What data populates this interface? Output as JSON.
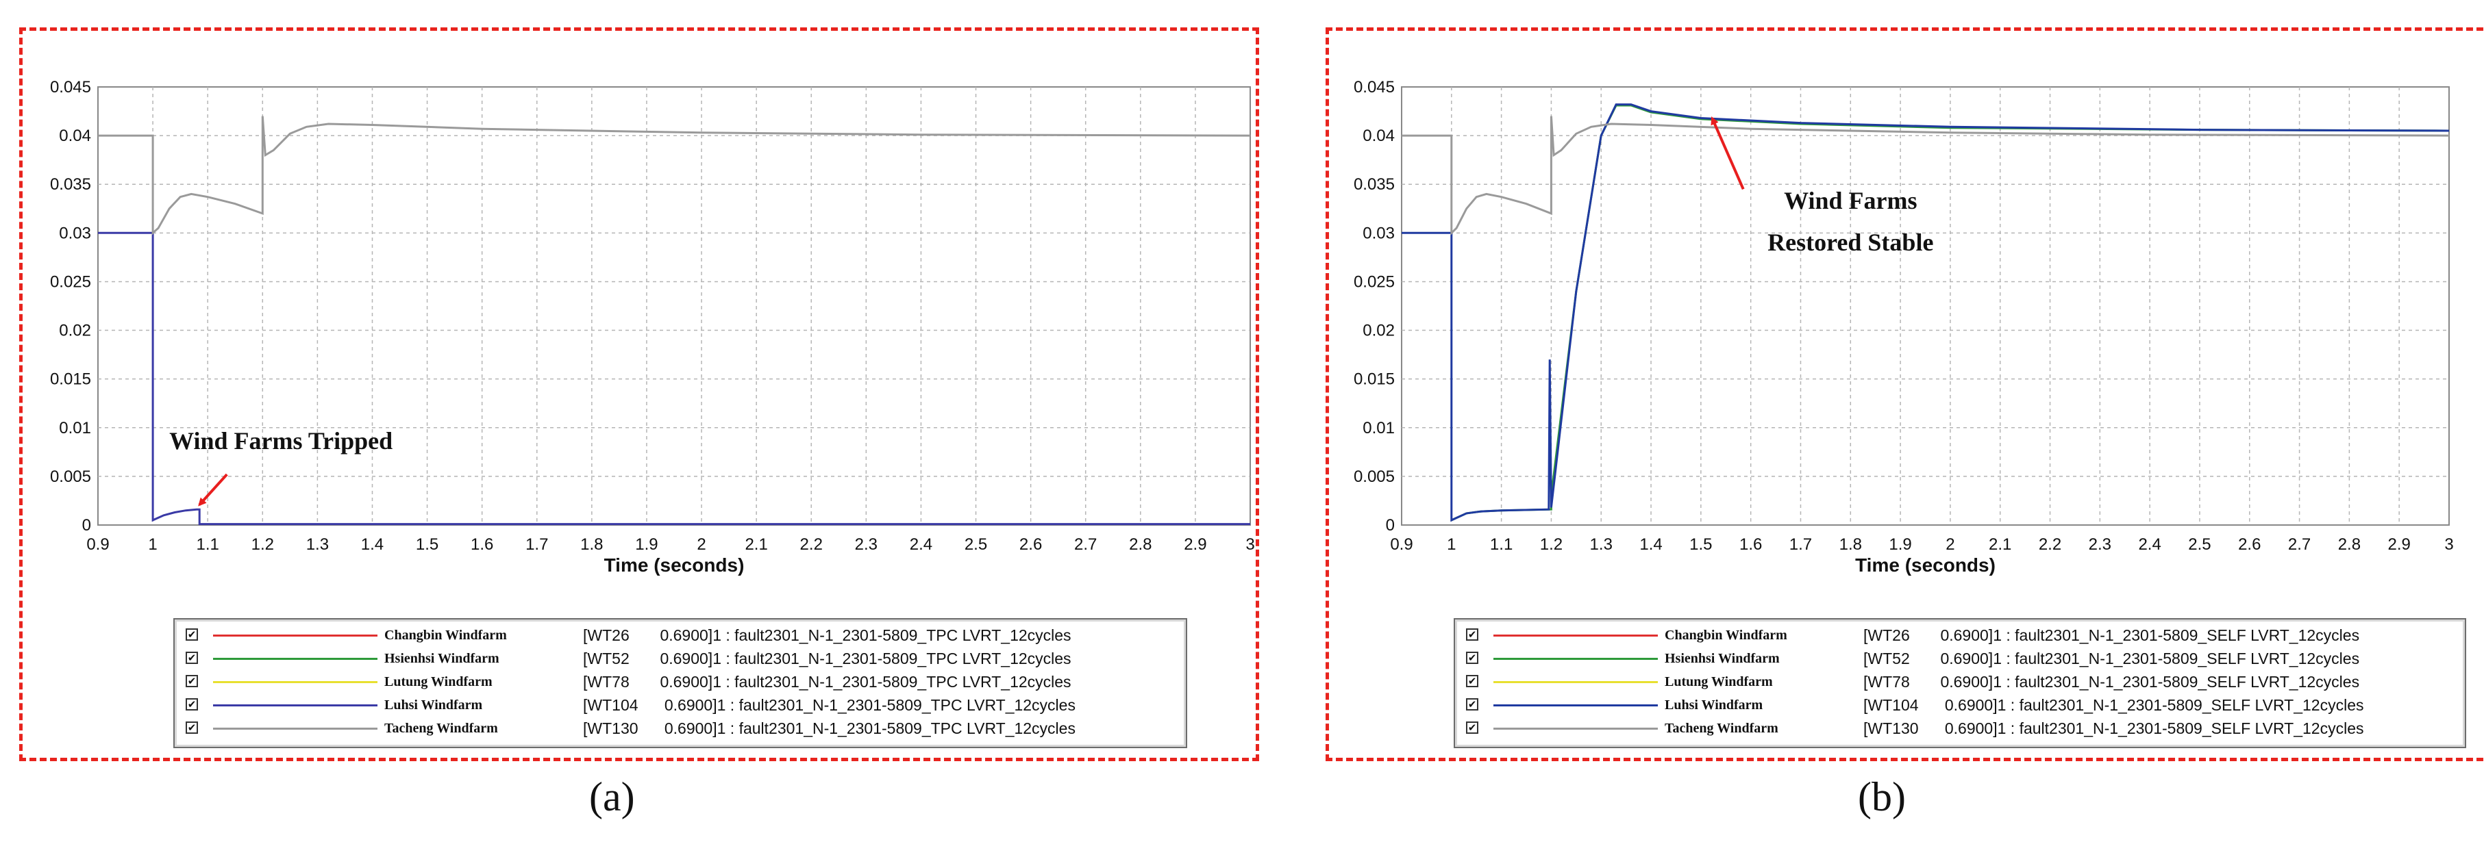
{
  "chart_data": [
    {
      "type": "line",
      "panel_label": "(a)",
      "xlabel": "Time (seconds)",
      "ylabel": "",
      "xlim": [
        0.9,
        3.0
      ],
      "ylim": [
        0,
        0.045
      ],
      "xticks": [
        "0.9",
        "1",
        "1.1",
        "1.2",
        "1.3",
        "1.4",
        "1.5",
        "1.6",
        "1.7",
        "1.8",
        "1.9",
        "2",
        "2.1",
        "2.2",
        "2.3",
        "2.4",
        "2.5",
        "2.6",
        "2.7",
        "2.8",
        "2.9",
        "3"
      ],
      "yticks": [
        "0",
        "0.005",
        "0.01",
        "0.015",
        "0.02",
        "0.025",
        "0.03",
        "0.035",
        "0.04",
        "0.045"
      ],
      "grid": true,
      "annotation": {
        "text": "Wind Farms Tripped",
        "x": 1.08,
        "y": 0.0018
      },
      "series": [
        {
          "name": "Luhsi Windfarm",
          "color": "#3a3aa6",
          "points": [
            [
              0.9,
              0.03
            ],
            [
              1.0,
              0.03
            ],
            [
              1.0,
              0.0005
            ],
            [
              1.02,
              0.001
            ],
            [
              1.04,
              0.0013
            ],
            [
              1.06,
              0.0015
            ],
            [
              1.08,
              0.0016
            ],
            [
              1.085,
              0.0016
            ],
            [
              1.085,
              0.0001
            ],
            [
              3.0,
              0.0001
            ]
          ]
        },
        {
          "name": "Tacheng Windfarm",
          "color": "#9a9a9a",
          "points": [
            [
              0.9,
              0.04
            ],
            [
              1.0,
              0.04
            ],
            [
              1.0,
              0.03
            ],
            [
              1.01,
              0.0305
            ],
            [
              1.03,
              0.0325
            ],
            [
              1.05,
              0.0337
            ],
            [
              1.07,
              0.034
            ],
            [
              1.1,
              0.0337
            ],
            [
              1.15,
              0.033
            ],
            [
              1.2,
              0.032
            ],
            [
              1.2,
              0.042
            ],
            [
              1.205,
              0.038
            ],
            [
              1.22,
              0.0385
            ],
            [
              1.25,
              0.0402
            ],
            [
              1.28,
              0.0409
            ],
            [
              1.32,
              0.0412
            ],
            [
              1.4,
              0.0411
            ],
            [
              1.6,
              0.0407
            ],
            [
              2.0,
              0.0403
            ],
            [
              2.4,
              0.0401
            ],
            [
              3.0,
              0.04
            ]
          ]
        }
      ]
    },
    {
      "type": "line",
      "panel_label": "(b)",
      "xlabel": "Time (seconds)",
      "ylabel": "",
      "xlim": [
        0.9,
        3.0
      ],
      "ylim": [
        0,
        0.045
      ],
      "xticks": [
        "0.9",
        "1",
        "1.1",
        "1.2",
        "1.3",
        "1.4",
        "1.5",
        "1.6",
        "1.7",
        "1.8",
        "1.9",
        "2",
        "2.1",
        "2.2",
        "2.3",
        "2.4",
        "2.5",
        "2.6",
        "2.7",
        "2.8",
        "2.9",
        "3"
      ],
      "yticks": [
        "0",
        "0.005",
        "0.01",
        "0.015",
        "0.02",
        "0.025",
        "0.03",
        "0.035",
        "0.04",
        "0.045"
      ],
      "grid": true,
      "annotation": {
        "line1": "Wind Farms",
        "line2": "Restored Stable",
        "x": 1.52,
        "y": 0.0415
      },
      "series": [
        {
          "name": "Hsienhsi Windfarm",
          "color": "#2e9a3a",
          "points": [
            [
              1.0,
              0.0005
            ],
            [
              1.03,
              0.0012
            ],
            [
              1.06,
              0.0014
            ],
            [
              1.1,
              0.0015
            ],
            [
              1.2,
              0.0016
            ],
            [
              1.2,
              0.003
            ],
            [
              1.25,
              0.024
            ],
            [
              1.3,
              0.04
            ],
            [
              1.33,
              0.0431
            ],
            [
              1.36,
              0.0431
            ],
            [
              1.4,
              0.0424
            ],
            [
              1.5,
              0.0417
            ],
            [
              1.7,
              0.0412
            ],
            [
              2.0,
              0.0408
            ],
            [
              2.5,
              0.0406
            ],
            [
              3.0,
              0.0405
            ]
          ]
        },
        {
          "name": "Luhsi Windfarm",
          "color": "#1f3aa0",
          "points": [
            [
              0.9,
              0.03
            ],
            [
              1.0,
              0.03
            ],
            [
              1.0,
              0.0005
            ],
            [
              1.03,
              0.0012
            ],
            [
              1.06,
              0.0014
            ],
            [
              1.1,
              0.0015
            ],
            [
              1.195,
              0.0016
            ],
            [
              1.197,
              0.017
            ],
            [
              1.2,
              0.0018
            ],
            [
              1.25,
              0.024
            ],
            [
              1.3,
              0.04
            ],
            [
              1.33,
              0.0432
            ],
            [
              1.36,
              0.0432
            ],
            [
              1.4,
              0.0425
            ],
            [
              1.5,
              0.0418
            ],
            [
              1.7,
              0.0413
            ],
            [
              2.0,
              0.0409
            ],
            [
              2.5,
              0.0406
            ],
            [
              3.0,
              0.0405
            ]
          ]
        },
        {
          "name": "Tacheng Windfarm",
          "color": "#9a9a9a",
          "points": [
            [
              0.9,
              0.04
            ],
            [
              1.0,
              0.04
            ],
            [
              1.0,
              0.03
            ],
            [
              1.01,
              0.0305
            ],
            [
              1.03,
              0.0325
            ],
            [
              1.05,
              0.0337
            ],
            [
              1.07,
              0.034
            ],
            [
              1.1,
              0.0337
            ],
            [
              1.15,
              0.033
            ],
            [
              1.2,
              0.032
            ],
            [
              1.2,
              0.042
            ],
            [
              1.205,
              0.038
            ],
            [
              1.22,
              0.0385
            ],
            [
              1.25,
              0.0402
            ],
            [
              1.28,
              0.0409
            ],
            [
              1.32,
              0.0412
            ],
            [
              1.4,
              0.0411
            ],
            [
              1.6,
              0.0407
            ],
            [
              2.0,
              0.0403
            ],
            [
              2.4,
              0.0401
            ],
            [
              3.0,
              0.04
            ]
          ]
        }
      ]
    }
  ],
  "legend_a": [
    {
      "name": "Changbin Windfarm",
      "color": "#e03030",
      "desc": "[WT26       0.6900]1 : fault2301_N-1_2301-5809_TPC LVRT_12cycles"
    },
    {
      "name": "Hsienhsi Windfarm",
      "color": "#2e9a3a",
      "desc": "[WT52       0.6900]1 : fault2301_N-1_2301-5809_TPC LVRT_12cycles"
    },
    {
      "name": "Lutung Windfarm",
      "color": "#e8e030",
      "desc": "[WT78       0.6900]1 : fault2301_N-1_2301-5809_TPC LVRT_12cycles"
    },
    {
      "name": "Luhsi Windfarm",
      "color": "#3a3aa6",
      "desc": "[WT104      0.6900]1 : fault2301_N-1_2301-5809_TPC LVRT_12cycles"
    },
    {
      "name": "Tacheng Windfarm",
      "color": "#9a9a9a",
      "desc": "[WT130      0.6900]1 : fault2301_N-1_2301-5809_TPC LVRT_12cycles"
    }
  ],
  "legend_b": [
    {
      "name": "Changbin Windfarm",
      "color": "#e03030",
      "desc": "[WT26       0.6900]1 : fault2301_N-1_2301-5809_SELF LVRT_12cycles"
    },
    {
      "name": "Hsienhsi Windfarm",
      "color": "#2e9a3a",
      "desc": "[WT52       0.6900]1 : fault2301_N-1_2301-5809_SELF LVRT_12cycles"
    },
    {
      "name": "Lutung Windfarm",
      "color": "#e8e030",
      "desc": "[WT78       0.6900]1 : fault2301_N-1_2301-5809_SELF LVRT_12cycles"
    },
    {
      "name": "Luhsi Windfarm",
      "color": "#1f3aa0",
      "desc": "[WT104      0.6900]1 : fault2301_N-1_2301-5809_SELF LVRT_12cycles"
    },
    {
      "name": "Tacheng Windfarm",
      "color": "#9a9a9a",
      "desc": "[WT130      0.6900]1 : fault2301_N-1_2301-5809_SELF LVRT_12cycles"
    }
  ],
  "checkbox_glyph": "✔"
}
